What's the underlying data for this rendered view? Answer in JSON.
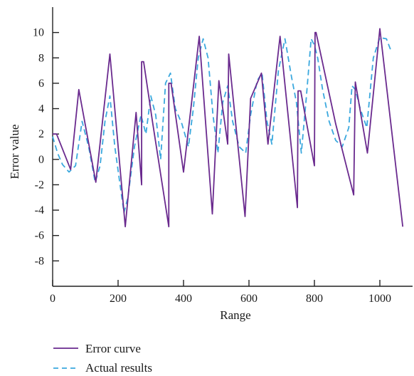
{
  "chart_data": {
    "type": "line",
    "xlabel": "Range",
    "ylabel": "Error value",
    "xlim": [
      0,
      1100
    ],
    "ylim": [
      -10,
      12
    ],
    "x_ticks": [
      0,
      200,
      400,
      600,
      800,
      1000
    ],
    "y_ticks": [
      -8,
      -6,
      -4,
      -2,
      0,
      2,
      4,
      6,
      8,
      10
    ],
    "grid": false,
    "legend_position": "bottom-left",
    "series": [
      {
        "name": "Error curve",
        "color": "#6a2a8e",
        "style": "solid",
        "x": [
          0,
          12,
          55,
          80,
          132,
          175,
          222,
          255,
          272,
          272,
          278,
          305,
          355,
          355,
          362,
          400,
          448,
          488,
          508,
          535,
          538,
          588,
          605,
          638,
          658,
          695,
          748,
          750,
          758,
          800,
          802,
          805,
          865,
          920,
          925,
          962,
          1000,
          1070
        ],
        "values": [
          2,
          2,
          -0.8,
          5.5,
          -1.8,
          8.3,
          -5.3,
          3.7,
          -2.0,
          7.7,
          7.7,
          3.0,
          -5.3,
          6.0,
          6.0,
          -1.0,
          9.7,
          -4.3,
          6.2,
          1.2,
          8.3,
          -4.5,
          4.8,
          6.8,
          1.2,
          9.7,
          -3.8,
          5.4,
          5.4,
          -0.5,
          10.0,
          10.0,
          2.8,
          -2.8,
          6.1,
          0.5,
          10.3,
          -5.3
        ]
      },
      {
        "name": "Actual results",
        "color": "#3aa8de",
        "style": "dashed",
        "x": [
          0,
          15,
          30,
          50,
          70,
          90,
          110,
          130,
          145,
          160,
          175,
          190,
          205,
          218,
          230,
          250,
          270,
          285,
          300,
          315,
          330,
          345,
          360,
          375,
          395,
          415,
          430,
          445,
          460,
          475,
          490,
          505,
          520,
          535,
          550,
          570,
          590,
          605,
          625,
          640,
          655,
          670,
          690,
          710,
          730,
          745,
          760,
          775,
          790,
          800,
          810,
          825,
          845,
          865,
          885,
          905,
          915,
          925,
          940,
          960,
          980,
          1000,
          1020,
          1035
        ],
        "values": [
          1.8,
          0.5,
          -0.4,
          -1.0,
          -0.5,
          3.0,
          1.0,
          -1.8,
          -0.5,
          3.0,
          5.0,
          1.0,
          -1.8,
          -4.2,
          -3.0,
          1.0,
          3.5,
          2.0,
          5.0,
          3.5,
          0.0,
          6.0,
          6.8,
          4.0,
          2.8,
          1.0,
          4.0,
          8.0,
          9.5,
          8.0,
          3.5,
          0.5,
          4.5,
          5.8,
          3.0,
          1.0,
          0.5,
          3.5,
          6.2,
          6.8,
          3.0,
          1.2,
          7.0,
          9.5,
          6.5,
          4.5,
          0.5,
          4.8,
          9.5,
          9.0,
          8.0,
          5.5,
          3.0,
          1.5,
          1.0,
          2.5,
          5.8,
          5.5,
          4.0,
          2.5,
          8.0,
          9.6,
          9.5,
          8.5
        ]
      }
    ]
  }
}
